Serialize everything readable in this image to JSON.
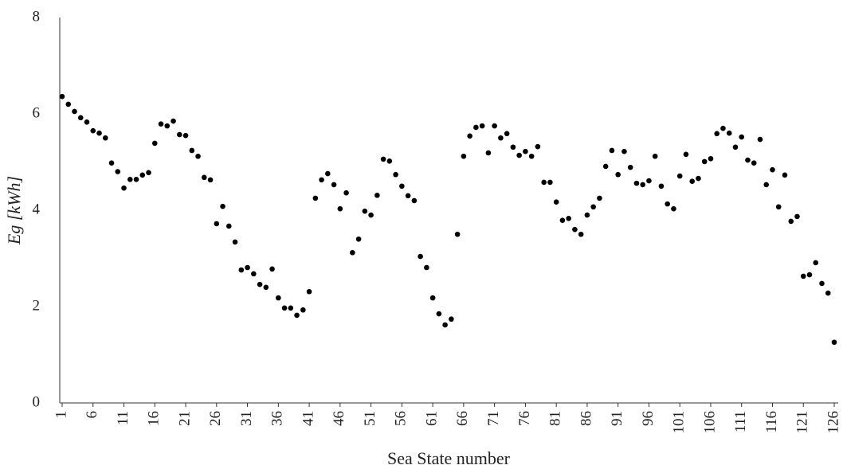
{
  "chart_data": {
    "type": "scatter",
    "x_label": "Sea State number",
    "y_label": "Eg  [kWh]",
    "xlim": [
      1,
      126
    ],
    "xticks": [
      1,
      6,
      11,
      16,
      21,
      26,
      31,
      36,
      41,
      46,
      51,
      56,
      61,
      66,
      71,
      76,
      81,
      86,
      91,
      96,
      101,
      106,
      111,
      116,
      121,
      126
    ],
    "ylim": [
      0,
      8
    ],
    "yticks": [
      0,
      2,
      4,
      6,
      8
    ],
    "grid": false,
    "series": [
      {
        "color": "#000000",
        "x": [
          1,
          2,
          3,
          4,
          5,
          6,
          7,
          8,
          9,
          10,
          11,
          12,
          13,
          14,
          15,
          16,
          17,
          18,
          19,
          20,
          21,
          22,
          23,
          24,
          25,
          26,
          27,
          28,
          29,
          30,
          31,
          32,
          33,
          34,
          35,
          36,
          37,
          38,
          39,
          40,
          41,
          42,
          43,
          44,
          45,
          46,
          47,
          48,
          49,
          50,
          51,
          52,
          53,
          54,
          55,
          56,
          57,
          58,
          59,
          60,
          61,
          62,
          63,
          64,
          65,
          66,
          67,
          68,
          69,
          70,
          71,
          72,
          73,
          74,
          75,
          76,
          77,
          78,
          79,
          80,
          81,
          82,
          83,
          84,
          85,
          86,
          87,
          88,
          89,
          90,
          91,
          92,
          93,
          94,
          95,
          96,
          97,
          98,
          99,
          100,
          101,
          102,
          103,
          104,
          105,
          106,
          107,
          108,
          109,
          110,
          111,
          112,
          113,
          114,
          115,
          116,
          117,
          118,
          119,
          120,
          121,
          122,
          123,
          124,
          125,
          126
        ],
        "values": [
          6.36,
          6.2,
          6.05,
          5.92,
          5.83,
          5.65,
          5.6,
          5.5,
          4.98,
          4.8,
          4.46,
          4.64,
          4.64,
          4.73,
          4.78,
          5.39,
          5.79,
          5.75,
          5.85,
          5.57,
          5.55,
          5.24,
          5.12,
          4.68,
          4.63,
          3.72,
          4.08,
          3.67,
          3.34,
          2.76,
          2.81,
          2.68,
          2.46,
          2.4,
          2.78,
          2.18,
          1.97,
          1.97,
          1.82,
          1.93,
          2.31,
          4.25,
          4.63,
          4.76,
          4.53,
          4.03,
          4.36,
          3.12,
          3.4,
          3.98,
          3.9,
          4.31,
          5.06,
          5.02,
          4.74,
          4.5,
          4.3,
          4.2,
          3.04,
          2.81,
          2.18,
          1.85,
          1.62,
          1.74,
          3.5,
          5.12,
          5.54,
          5.72,
          5.75,
          5.19,
          5.75,
          5.5,
          5.59,
          5.31,
          5.14,
          5.22,
          5.12,
          5.32,
          4.58,
          4.58,
          4.17,
          3.79,
          3.83,
          3.6,
          3.5,
          3.9,
          4.07,
          4.25,
          4.91,
          5.24,
          4.74,
          5.22,
          4.89,
          4.56,
          4.53,
          4.61,
          5.12,
          4.5,
          4.13,
          4.03,
          4.71,
          5.16,
          4.6,
          4.66,
          5.01,
          5.07,
          5.59,
          5.7,
          5.6,
          5.31,
          5.52,
          5.04,
          4.98,
          5.47,
          4.53,
          4.84,
          4.07,
          4.73,
          3.77,
          3.87,
          2.63,
          2.66,
          2.91,
          2.48,
          2.28,
          1.26
        ]
      }
    ]
  }
}
